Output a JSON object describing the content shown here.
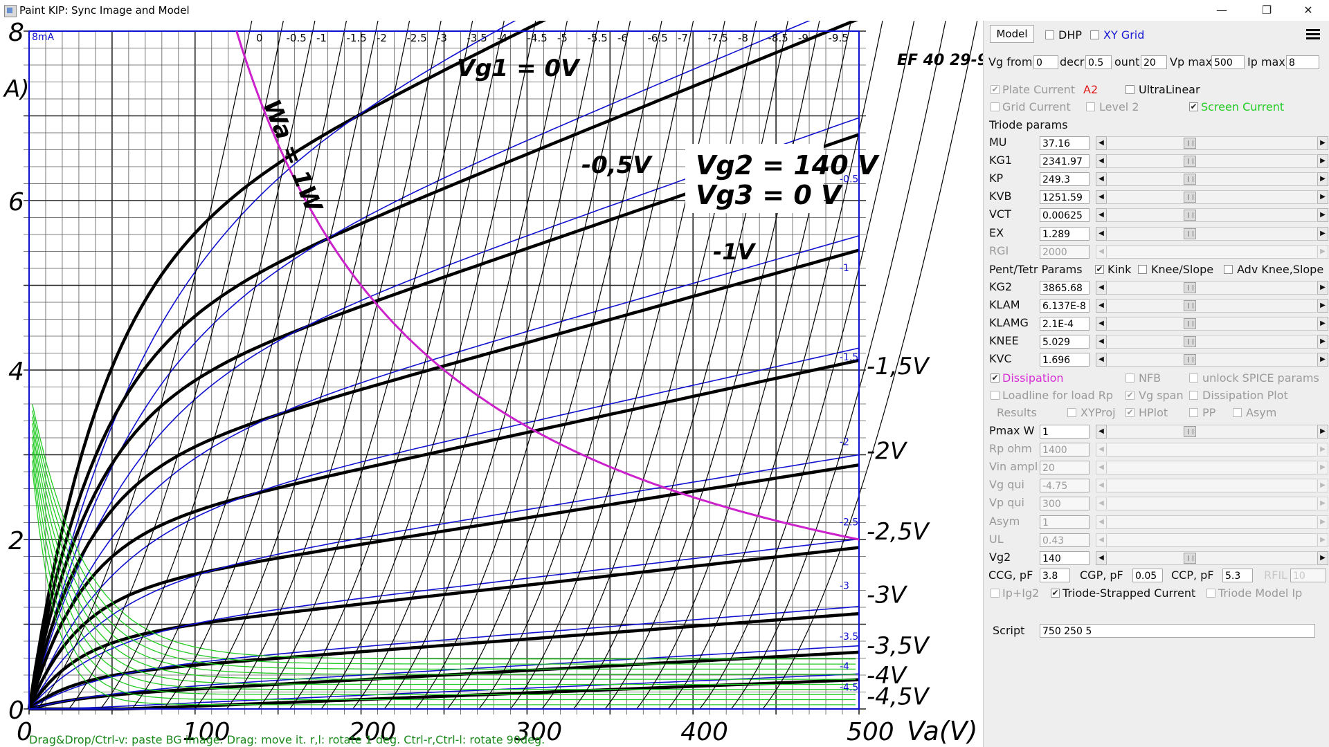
{
  "window": {
    "title": "Paint KIP: Sync Image and Model",
    "minimize": "—",
    "maximize": "❐",
    "close": "✕"
  },
  "plot": {
    "bg_image_text": {
      "y_ticks": [
        "8",
        "6",
        "4",
        "2",
        "0"
      ],
      "y_unit": "A)",
      "x_ticks": [
        "0",
        "100",
        "200",
        "300",
        "400",
        "500"
      ],
      "x_label": "Va(V)",
      "tube": "EF 40  29-9",
      "vg1_curve_labels": [
        "Vg1 = 0V",
        "-0,5V",
        "-1V",
        "-1,5V",
        "-2V",
        "-2,5V",
        "-3V",
        "-3,5V",
        "-4V",
        "-4,5V"
      ],
      "vg2_label": "Vg2 = 140 V",
      "vg3_label": "Vg3 = 0 V",
      "dissipation_label": "Wa = 1W"
    },
    "overlay_top_label": "8mA",
    "grid_labels_top": [
      "0",
      "-0.5",
      "-1",
      "-1.5",
      "-2",
      "-2.5",
      "-3",
      "-3.5",
      "-4",
      "-4.5",
      "-5",
      "-5.5",
      "-6",
      "-6.5",
      "-7",
      "-7.5",
      "-8",
      "-8.5",
      "-9",
      "-9.5"
    ],
    "model_curve_labels": [
      "-0.5",
      "-1",
      "-1.5",
      "-2",
      "-2.5",
      "-3",
      "-3.5",
      "-4",
      "-4.5"
    ],
    "hint": "Drag&Drop/Ctrl-v: paste BG image. Drag: move it. r,l: rotate 1 deg. Ctrl-r,Ctrl-l: rotate 90deg.",
    "colors": {
      "model_curves": "#1010d0",
      "screen_current": "#22cc22",
      "dissipation": "#cc22cc",
      "bg_curves": "#000000"
    }
  },
  "panel": {
    "tab_model": "Model",
    "dhp": {
      "label": "DHP",
      "checked": false
    },
    "xy_grid": {
      "label": "XY Grid",
      "checked": false
    },
    "menu_icon": "hamburger-menu",
    "vg_from": {
      "label": "Vg from",
      "value": "0"
    },
    "decr": {
      "label": "decr",
      "value": "0.5"
    },
    "count": {
      "label": "ount",
      "value": "20"
    },
    "vp_max": {
      "label": "Vp max",
      "value": "500"
    },
    "ip_max": {
      "label": "Ip max",
      "value": "8"
    },
    "plate_current": {
      "label": "Plate Current",
      "checked": true,
      "suffix": "A2"
    },
    "ultralinear": {
      "label": "UltraLinear",
      "checked": false
    },
    "grid_current": {
      "label": "Grid Current",
      "checked": false
    },
    "level2": {
      "label": "Level 2",
      "checked": false
    },
    "screen_current": {
      "label": "Screen Current",
      "checked": true
    },
    "triode_params_title": "Triode params",
    "triode_params": [
      {
        "label": "MU",
        "value": "37.16",
        "enabled": true
      },
      {
        "label": "KG1",
        "value": "2341.97",
        "enabled": true
      },
      {
        "label": "KP",
        "value": "249.3",
        "enabled": true
      },
      {
        "label": "KVB",
        "value": "1251.59",
        "enabled": true
      },
      {
        "label": "VCT",
        "value": "0.00625",
        "enabled": true
      },
      {
        "label": "EX",
        "value": "1.289",
        "enabled": true
      },
      {
        "label": "RGI",
        "value": "2000",
        "enabled": false
      }
    ],
    "pent_title": "Pent/Tetr Params",
    "kink": {
      "label": "Kink",
      "checked": true
    },
    "knee_slope": {
      "label": "Knee/Slope",
      "checked": false
    },
    "adv_knee": {
      "label": "Adv Knee,Slope",
      "checked": false
    },
    "pent_params": [
      {
        "label": "KG2",
        "value": "3865.68",
        "enabled": true
      },
      {
        "label": "KLAM",
        "value": "6.137E-8",
        "enabled": true
      },
      {
        "label": "KLAMG",
        "value": "2.1E-4",
        "enabled": true
      },
      {
        "label": "KNEE",
        "value": "5.029",
        "enabled": true
      },
      {
        "label": "KVC",
        "value": "1.696",
        "enabled": true
      }
    ],
    "dissipation": {
      "label": "Dissipation",
      "checked": true
    },
    "nfb": {
      "label": "NFB",
      "checked": false
    },
    "unlock_spice": {
      "label": "unlock SPICE params",
      "checked": false
    },
    "loadline": {
      "label": "Loadline for load Rp",
      "checked": false
    },
    "vg_span": {
      "label": "Vg span",
      "checked": true
    },
    "dissipation_plot": {
      "label": "Dissipation Plot",
      "checked": false
    },
    "results": {
      "label": "Results"
    },
    "xyproj": {
      "label": "XYProj",
      "checked": false
    },
    "hplot": {
      "label": "HPlot",
      "checked": true
    },
    "pp": {
      "label": "PP",
      "checked": false
    },
    "asym_chk": {
      "label": "Asym",
      "checked": false
    },
    "load_params": [
      {
        "label": "Pmax W",
        "value": "1",
        "enabled": true
      },
      {
        "label": "Rp ohm",
        "value": "1400",
        "enabled": false
      },
      {
        "label": "Vin ampl",
        "value": "20",
        "enabled": false
      },
      {
        "label": "Vg qui",
        "value": "-4.75",
        "enabled": false
      },
      {
        "label": "Vp qui",
        "value": "300",
        "enabled": false
      },
      {
        "label": "Asym",
        "value": "1",
        "enabled": false
      },
      {
        "label": "UL",
        "value": "0.43",
        "enabled": false
      },
      {
        "label": "Vg2",
        "value": "140",
        "enabled": true
      }
    ],
    "ccg": {
      "label": "CCG, pF",
      "value": "3.8"
    },
    "cgp": {
      "label": "CGP, pF",
      "value": "0.05"
    },
    "ccp": {
      "label": "CCP, pF",
      "value": "5.3"
    },
    "rfil": {
      "label": "RFIL",
      "value": "10"
    },
    "ip_ig2": {
      "label": "Ip+Ig2",
      "checked": false
    },
    "triode_strapped": {
      "label": "Triode-Strapped Current",
      "checked": true
    },
    "triode_model_ip": {
      "label": "Triode Model Ip",
      "checked": false
    },
    "script": {
      "label": "Script",
      "value": "750 250 5"
    }
  }
}
